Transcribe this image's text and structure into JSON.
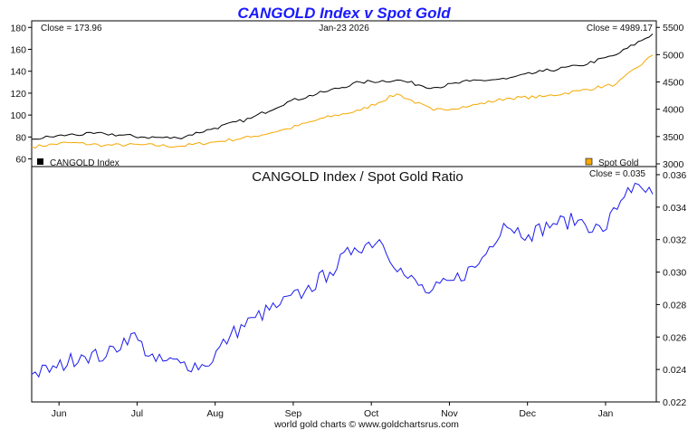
{
  "chart_data": [
    {
      "type": "line",
      "title": "CANGOLD Index v Spot Gold",
      "date_label": "Jan-23  2026",
      "left_close": "Close = 173.96",
      "right_close": "Close = 4989.17",
      "x": [
        "May 27",
        "Jun 15",
        "Jul 1",
        "Jul 15",
        "Aug 1",
        "Aug 15",
        "Sep 1",
        "Sep 15",
        "Oct 1",
        "Oct 10",
        "Oct 20",
        "Nov 1",
        "Nov 15",
        "Dec 1",
        "Dec 15",
        "Jan 1",
        "Jan 10",
        "Jan 23"
      ],
      "left_axis": {
        "ylim": [
          53,
          186
        ],
        "ticks": [
          60,
          80,
          100,
          120,
          140,
          160,
          180
        ]
      },
      "right_axis": {
        "ylim": [
          2950,
          5620
        ],
        "ticks": [
          3000,
          3500,
          4000,
          4500,
          5000,
          5500
        ]
      },
      "series": [
        {
          "name": "CANGOLD Index",
          "axis": "left",
          "color": "#000000",
          "values": [
            78,
            82,
            83,
            80,
            79,
            88,
            97,
            112,
            121,
            130,
            132,
            125,
            131,
            133,
            140,
            145,
            155,
            174
          ]
        },
        {
          "name": "Spot Gold",
          "axis": "right",
          "color": "#f5a800",
          "values": [
            3310,
            3390,
            3340,
            3350,
            3320,
            3400,
            3490,
            3640,
            3840,
            3980,
            4280,
            3980,
            4060,
            4200,
            4230,
            4340,
            4460,
            4989
          ]
        }
      ],
      "legend": [
        "CANGOLD Index",
        "Spot Gold"
      ]
    },
    {
      "type": "line",
      "title": "CANGOLD Index  /  Spot Gold Ratio",
      "close": "Close = 0.035",
      "x": [
        "May 27",
        "Jun 1",
        "Jun 15",
        "Jun 25",
        "Jul 1",
        "Jul 10",
        "Jul 20",
        "Aug 1",
        "Aug 10",
        "Aug 20",
        "Sep 1",
        "Sep 10",
        "Sep 20",
        "Oct 1",
        "Oct 10",
        "Oct 20",
        "Nov 1",
        "Nov 10",
        "Nov 20",
        "Dec 1",
        "Dec 10",
        "Dec 20",
        "Jan 1",
        "Jan 10",
        "Jan 20",
        "Jan 23"
      ],
      "values": [
        0.0237,
        0.0241,
        0.0249,
        0.0248,
        0.0262,
        0.0245,
        0.0244,
        0.0242,
        0.0261,
        0.0272,
        0.028,
        0.0288,
        0.03,
        0.0315,
        0.032,
        0.0298,
        0.0287,
        0.0295,
        0.0305,
        0.033,
        0.0323,
        0.033,
        0.0332,
        0.0325,
        0.0352,
        0.0348
      ],
      "ylim": [
        0.022,
        0.0365
      ],
      "ticks": [
        0.022,
        0.024,
        0.026,
        0.028,
        0.03,
        0.032,
        0.034,
        0.036
      ],
      "color": "#1a1aee",
      "months": [
        "Jun",
        "Jul",
        "Aug",
        "Sep",
        "Oct",
        "Nov",
        "Dec",
        "Jan"
      ]
    }
  ],
  "credit": "world gold charts © www.goldchartsrus.com"
}
